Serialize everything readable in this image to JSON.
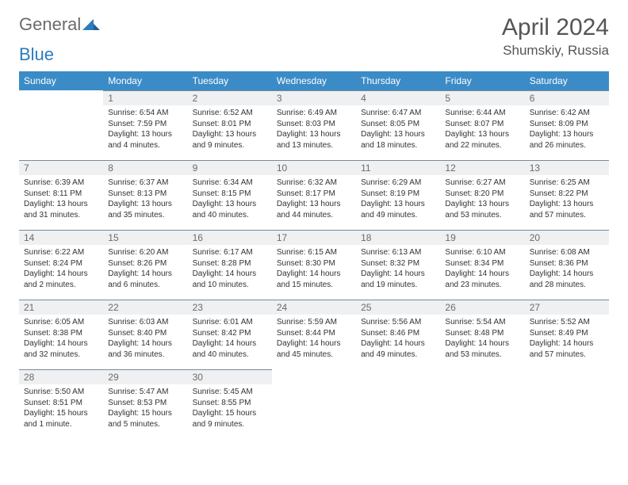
{
  "logo": {
    "general": "General",
    "blue": "Blue"
  },
  "title": "April 2024",
  "location": "Shumskiy, Russia",
  "dow": [
    "Sunday",
    "Monday",
    "Tuesday",
    "Wednesday",
    "Thursday",
    "Friday",
    "Saturday"
  ],
  "colors": {
    "header_bg": "#3b8bc7",
    "header_fg": "#ffffff",
    "daynum_bg": "#eef0f2",
    "daynum_border": "#7a8a99",
    "text": "#333333",
    "muted": "#6b6b6b",
    "logo_blue": "#2b7bbd"
  },
  "weeks": [
    [
      null,
      {
        "n": "1",
        "sr": "6:54 AM",
        "ss": "7:59 PM",
        "dl": "13 hours and 4 minutes."
      },
      {
        "n": "2",
        "sr": "6:52 AM",
        "ss": "8:01 PM",
        "dl": "13 hours and 9 minutes."
      },
      {
        "n": "3",
        "sr": "6:49 AM",
        "ss": "8:03 PM",
        "dl": "13 hours and 13 minutes."
      },
      {
        "n": "4",
        "sr": "6:47 AM",
        "ss": "8:05 PM",
        "dl": "13 hours and 18 minutes."
      },
      {
        "n": "5",
        "sr": "6:44 AM",
        "ss": "8:07 PM",
        "dl": "13 hours and 22 minutes."
      },
      {
        "n": "6",
        "sr": "6:42 AM",
        "ss": "8:09 PM",
        "dl": "13 hours and 26 minutes."
      }
    ],
    [
      {
        "n": "7",
        "sr": "6:39 AM",
        "ss": "8:11 PM",
        "dl": "13 hours and 31 minutes."
      },
      {
        "n": "8",
        "sr": "6:37 AM",
        "ss": "8:13 PM",
        "dl": "13 hours and 35 minutes."
      },
      {
        "n": "9",
        "sr": "6:34 AM",
        "ss": "8:15 PM",
        "dl": "13 hours and 40 minutes."
      },
      {
        "n": "10",
        "sr": "6:32 AM",
        "ss": "8:17 PM",
        "dl": "13 hours and 44 minutes."
      },
      {
        "n": "11",
        "sr": "6:29 AM",
        "ss": "8:19 PM",
        "dl": "13 hours and 49 minutes."
      },
      {
        "n": "12",
        "sr": "6:27 AM",
        "ss": "8:20 PM",
        "dl": "13 hours and 53 minutes."
      },
      {
        "n": "13",
        "sr": "6:25 AM",
        "ss": "8:22 PM",
        "dl": "13 hours and 57 minutes."
      }
    ],
    [
      {
        "n": "14",
        "sr": "6:22 AM",
        "ss": "8:24 PM",
        "dl": "14 hours and 2 minutes."
      },
      {
        "n": "15",
        "sr": "6:20 AM",
        "ss": "8:26 PM",
        "dl": "14 hours and 6 minutes."
      },
      {
        "n": "16",
        "sr": "6:17 AM",
        "ss": "8:28 PM",
        "dl": "14 hours and 10 minutes."
      },
      {
        "n": "17",
        "sr": "6:15 AM",
        "ss": "8:30 PM",
        "dl": "14 hours and 15 minutes."
      },
      {
        "n": "18",
        "sr": "6:13 AM",
        "ss": "8:32 PM",
        "dl": "14 hours and 19 minutes."
      },
      {
        "n": "19",
        "sr": "6:10 AM",
        "ss": "8:34 PM",
        "dl": "14 hours and 23 minutes."
      },
      {
        "n": "20",
        "sr": "6:08 AM",
        "ss": "8:36 PM",
        "dl": "14 hours and 28 minutes."
      }
    ],
    [
      {
        "n": "21",
        "sr": "6:05 AM",
        "ss": "8:38 PM",
        "dl": "14 hours and 32 minutes."
      },
      {
        "n": "22",
        "sr": "6:03 AM",
        "ss": "8:40 PM",
        "dl": "14 hours and 36 minutes."
      },
      {
        "n": "23",
        "sr": "6:01 AM",
        "ss": "8:42 PM",
        "dl": "14 hours and 40 minutes."
      },
      {
        "n": "24",
        "sr": "5:59 AM",
        "ss": "8:44 PM",
        "dl": "14 hours and 45 minutes."
      },
      {
        "n": "25",
        "sr": "5:56 AM",
        "ss": "8:46 PM",
        "dl": "14 hours and 49 minutes."
      },
      {
        "n": "26",
        "sr": "5:54 AM",
        "ss": "8:48 PM",
        "dl": "14 hours and 53 minutes."
      },
      {
        "n": "27",
        "sr": "5:52 AM",
        "ss": "8:49 PM",
        "dl": "14 hours and 57 minutes."
      }
    ],
    [
      {
        "n": "28",
        "sr": "5:50 AM",
        "ss": "8:51 PM",
        "dl": "15 hours and 1 minute."
      },
      {
        "n": "29",
        "sr": "5:47 AM",
        "ss": "8:53 PM",
        "dl": "15 hours and 5 minutes."
      },
      {
        "n": "30",
        "sr": "5:45 AM",
        "ss": "8:55 PM",
        "dl": "15 hours and 9 minutes."
      },
      null,
      null,
      null,
      null
    ]
  ]
}
